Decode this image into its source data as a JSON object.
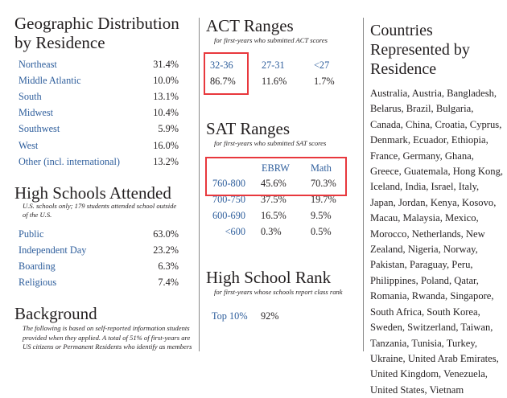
{
  "geographic": {
    "title_line1": "Geographic Distribution",
    "title_line2": "by Residence",
    "rows": [
      {
        "label": "Northeast",
        "value": "31.4%"
      },
      {
        "label": "Middle Atlantic",
        "value": "10.0%"
      },
      {
        "label": "South",
        "value": "13.1%"
      },
      {
        "label": "Midwest",
        "value": "10.4%"
      },
      {
        "label": "Southwest",
        "value": "5.9%"
      },
      {
        "label": "West",
        "value": "16.0%"
      },
      {
        "label": "Other (incl. international)",
        "value": "13.2%"
      }
    ]
  },
  "high_schools": {
    "title": "High Schools Attended",
    "note_line1": "U.S. schools only; 179 students attended school outside",
    "note_line2": "of the U.S.",
    "rows": [
      {
        "label": "Public",
        "value": "63.0%"
      },
      {
        "label": "Independent Day",
        "value": "23.2%"
      },
      {
        "label": "Boarding",
        "value": "6.3%"
      },
      {
        "label": "Religious",
        "value": "7.4%"
      }
    ]
  },
  "background": {
    "title": "Background",
    "lines": [
      "The following is based on self-reported information students",
      "provided when they applied. A total of 51% of first-years are",
      "US citizens or Permanent Residents who identify as members"
    ]
  },
  "act": {
    "title": "ACT Ranges",
    "subtitle": "for first-years who submitted ACT scores",
    "columns": [
      {
        "range": "32-36",
        "value": "86.7%"
      },
      {
        "range": "27-31",
        "value": "11.6%"
      },
      {
        "range": "<27",
        "value": "1.7%"
      }
    ]
  },
  "sat": {
    "title": "SAT Ranges",
    "subtitle": "for first-years who submitted SAT scores",
    "headers": [
      "EBRW",
      "Math"
    ],
    "rows": [
      {
        "range": "760-800",
        "ebrw": "45.6%",
        "math": "70.3%"
      },
      {
        "range": "700-750",
        "ebrw": "37.5%",
        "math": "19.7%"
      },
      {
        "range": "600-690",
        "ebrw": "16.5%",
        "math": "9.5%"
      },
      {
        "range": "<600",
        "ebrw": "0.3%",
        "math": "0.5%"
      }
    ]
  },
  "rank": {
    "title": "High School Rank",
    "subtitle": "for first-years whose schools report class rank",
    "label": "Top 10%",
    "value": "92%"
  },
  "countries": {
    "title_lines": [
      "Countries",
      "Represented by",
      "Residence"
    ],
    "lines": [
      "Australia, Austria, Bangladesh,",
      "Belarus, Brazil, Bulgaria,",
      "Canada, China, Croatia, Cyprus,",
      "Denmark, Ecuador, Ethiopia,",
      "France, Germany, Ghana,",
      "Greece, Guatemala, Hong Kong,",
      "Iceland, India, Israel, Italy,",
      "Japan, Jordan, Kenya, Kosovo,",
      "Macau, Malaysia, Mexico,",
      "Morocco, Netherlands, New",
      "Zealand, Nigeria, Norway,",
      "Pakistan, Paraguay, Peru,",
      "Philippines, Poland, Qatar,",
      "Romania, Rwanda, Singapore,",
      "South Africa, South Korea,",
      "Sweden, Switzerland, Taiwan,",
      "Tanzania, Tunisia, Turkey,",
      "Ukraine, United Arab Emirates,",
      "United Kingdom, Venezuela,",
      "United States, Vietnam"
    ]
  },
  "colors": {
    "label_blue": "#2e5e9c",
    "highlight_red": "#e8383d"
  }
}
